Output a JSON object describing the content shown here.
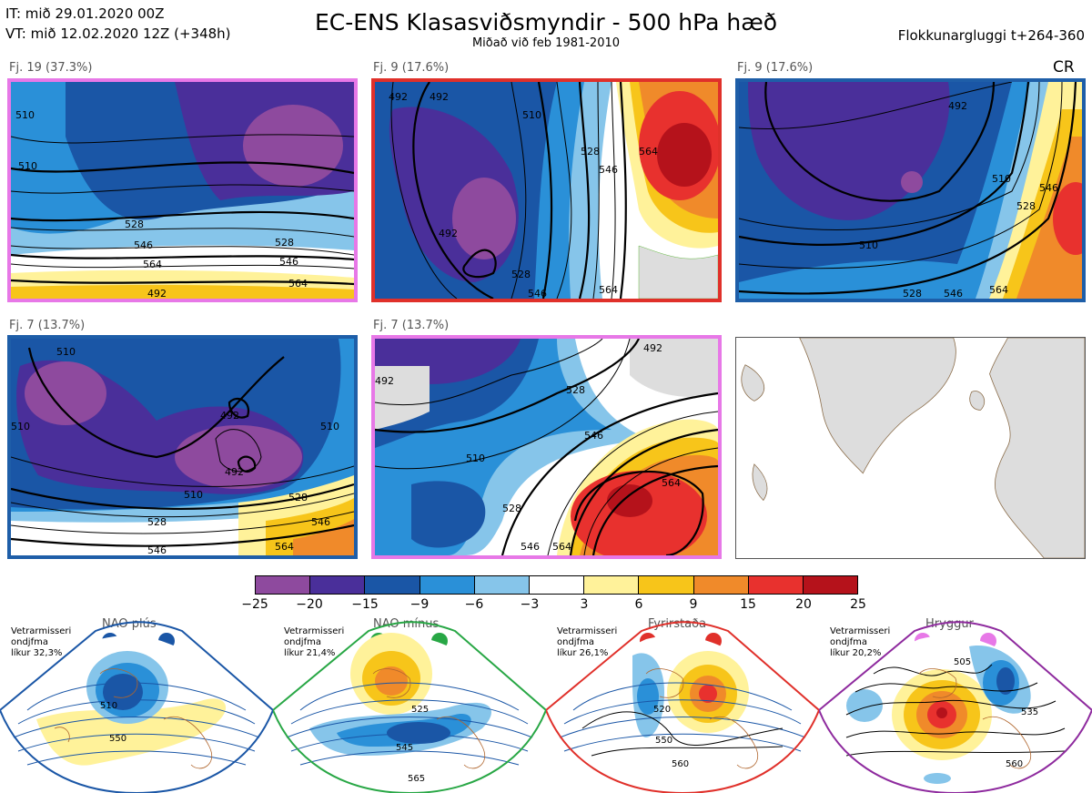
{
  "header": {
    "it_line": "IT: mið 29.01.2020 00Z",
    "vt_line": "VT: mið 12.02.2020 12Z  (+348h)",
    "title": "EC-ENS Klasasviðsmyndir - 500 hPa hæð",
    "subtitle": "Miðað við feb 1981-2010",
    "window": "Flokkunargluggi t+264-360",
    "cr": "CR"
  },
  "panels": [
    {
      "label": "Fj. 19 (37.3%)",
      "border": "#e778e7",
      "contours": [
        "510",
        "510",
        "528",
        "546",
        "564",
        "528",
        "546",
        "564",
        "492"
      ]
    },
    {
      "label": "Fj. 9 (17.6%)",
      "border": "#e0302a",
      "contours": [
        "492",
        "492",
        "510",
        "528",
        "546",
        "564",
        "492",
        "528",
        "546",
        "564"
      ]
    },
    {
      "label": "Fj. 9 (17.6%)",
      "border": "#1e5ea8",
      "contours": [
        "492",
        "510",
        "510",
        "528",
        "546",
        "564",
        "528",
        "546"
      ]
    },
    {
      "label": "Fj. 7 (13.7%)",
      "border": "#1e5ea8",
      "contours": [
        "510",
        "510",
        "510",
        "492",
        "492",
        "510",
        "528",
        "528",
        "546",
        "546",
        "564"
      ]
    },
    {
      "label": "Fj. 7 (13.7%)",
      "border": "#e778e7",
      "contours": [
        "492",
        "510",
        "528",
        "546",
        "564",
        "492",
        "528",
        "546",
        "564"
      ]
    }
  ],
  "colorbar": {
    "colors": [
      "#8e4a9e",
      "#4a2f9a",
      "#1a56a6",
      "#2a90d8",
      "#86c5ea",
      "#ffffff",
      "#fff29a",
      "#f7c51a",
      "#f08a2a",
      "#e8312e",
      "#b5121b"
    ],
    "ticks": [
      "−25",
      "−20",
      "−15",
      "−9",
      "−6",
      "−3",
      "3",
      "6",
      "9",
      "15",
      "20",
      "25"
    ]
  },
  "regimes": [
    {
      "title": "NAO plús",
      "note1": "Vetrarmisseri",
      "note2": "ondjfma",
      "note3": "líkur 32,3%",
      "color": "#1a56a6",
      "contours": [
        "510",
        "550"
      ]
    },
    {
      "title": "NAO mínus",
      "note1": "Vetrarmisseri",
      "note2": "ondjfma",
      "note3": "líkur 21,4%",
      "color": "#28a745",
      "contours": [
        "525",
        "545",
        "565"
      ]
    },
    {
      "title": "Fyrirstaða",
      "note1": "Vetrarmisseri",
      "note2": "ondjfma",
      "note3": "líkur 26,1%",
      "color": "#e0302a",
      "contours": [
        "520",
        "550",
        "560"
      ]
    },
    {
      "title": "Hryggur",
      "note1": "Vetrarmisseri",
      "note2": "ondjfma",
      "note3": "líkur 20,2%",
      "color": "#8e2a9e",
      "contours": [
        "505",
        "535",
        "560"
      ]
    }
  ]
}
